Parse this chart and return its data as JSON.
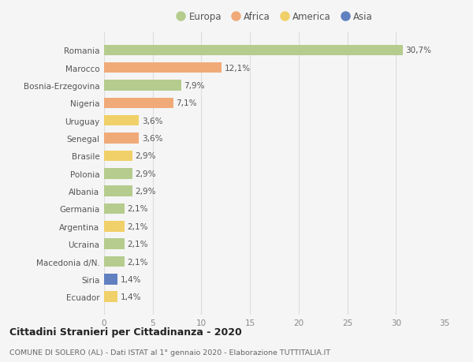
{
  "countries": [
    "Romania",
    "Marocco",
    "Bosnia-Erzegovina",
    "Nigeria",
    "Uruguay",
    "Senegal",
    "Brasile",
    "Polonia",
    "Albania",
    "Germania",
    "Argentina",
    "Ucraina",
    "Macedonia d/N.",
    "Siria",
    "Ecuador"
  ],
  "values": [
    30.7,
    12.1,
    7.9,
    7.1,
    3.6,
    3.6,
    2.9,
    2.9,
    2.9,
    2.1,
    2.1,
    2.1,
    2.1,
    1.4,
    1.4
  ],
  "labels": [
    "30,7%",
    "12,1%",
    "7,9%",
    "7,1%",
    "3,6%",
    "3,6%",
    "2,9%",
    "2,9%",
    "2,9%",
    "2,1%",
    "2,1%",
    "2,1%",
    "2,1%",
    "1,4%",
    "1,4%"
  ],
  "continents": [
    "Europa",
    "Africa",
    "Europa",
    "Africa",
    "America",
    "Africa",
    "America",
    "Europa",
    "Europa",
    "Europa",
    "America",
    "Europa",
    "Europa",
    "Asia",
    "America"
  ],
  "continent_colors": {
    "Europa": "#b5cc8e",
    "Africa": "#f0aa78",
    "America": "#f0d068",
    "Asia": "#6080c0"
  },
  "legend_order": [
    "Europa",
    "Africa",
    "America",
    "Asia"
  ],
  "title": "Cittadini Stranieri per Cittadinanza - 2020",
  "subtitle": "COMUNE DI SOLERO (AL) - Dati ISTAT al 1° gennaio 2020 - Elaborazione TUTTITALIA.IT",
  "xlim": [
    0,
    35
  ],
  "xticks": [
    0,
    5,
    10,
    15,
    20,
    25,
    30,
    35
  ],
  "background_color": "#f5f5f5",
  "bar_height": 0.6,
  "grid_color": "#dddddd"
}
